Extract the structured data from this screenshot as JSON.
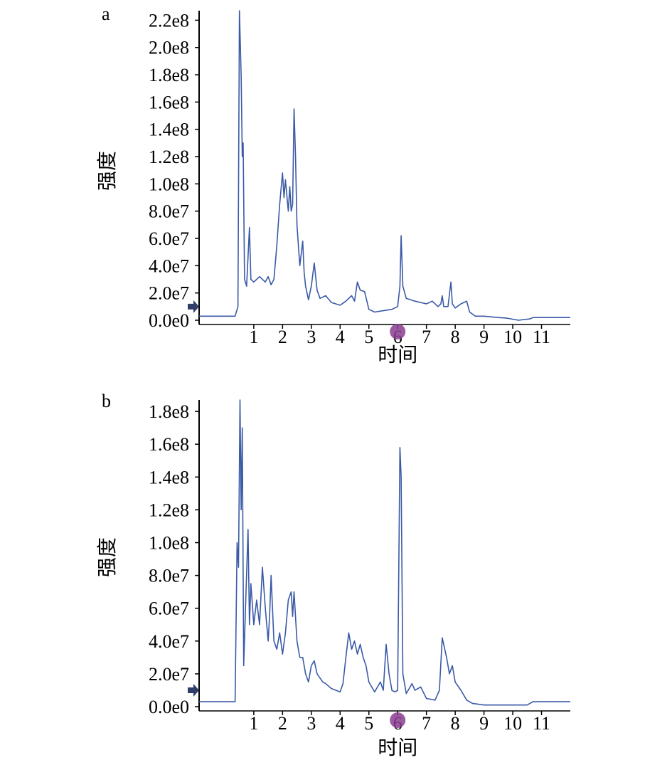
{
  "colors": {
    "trace": "#3a5aa6",
    "axis": "#000000",
    "marker": "#8a3d8f",
    "arrow": "#2f3f6a"
  },
  "chart_data": [
    {
      "panel_label": "a",
      "type": "line",
      "xlabel": "时间",
      "ylabel": "强度",
      "xlim": [
        -0.9,
        12.0
      ],
      "ylim": [
        0,
        227000000.0
      ],
      "x_ticks": [
        1,
        2,
        3,
        4,
        5,
        6,
        7,
        8,
        9,
        10,
        11
      ],
      "x_tick_labels": [
        "1",
        "2",
        "3",
        "4",
        "5",
        "6",
        "7",
        "8",
        "9",
        "10",
        "11"
      ],
      "y_ticks": [
        0,
        20000000.0,
        40000000.0,
        60000000.0,
        80000000.0,
        100000000.0,
        120000000.0,
        140000000.0,
        160000000.0,
        180000000.0,
        200000000.0,
        220000000.0
      ],
      "y_tick_labels": [
        "0.0e0",
        "2.0e7",
        "4.0e7",
        "6.0e7",
        "8.0e7",
        "1.0e8",
        "1.2e8",
        "1.4e8",
        "1.6e8",
        "1.8e8",
        "2.0e8",
        "2.2e8"
      ],
      "marker_x": 6.0,
      "series": [
        {
          "points": [
            [
              -0.9,
              3000000.0
            ],
            [
              0.35,
              3000000.0
            ],
            [
              0.45,
              10000000.0
            ],
            [
              0.5,
              227000000.0
            ],
            [
              0.56,
              180000000.0
            ],
            [
              0.6,
              120000000.0
            ],
            [
              0.63,
              130000000.0
            ],
            [
              0.68,
              30000000.0
            ],
            [
              0.75,
              25000000.0
            ],
            [
              0.85,
              68000000.0
            ],
            [
              0.9,
              30000000.0
            ],
            [
              1.0,
              28000000.0
            ],
            [
              1.2,
              32000000.0
            ],
            [
              1.4,
              28000000.0
            ],
            [
              1.5,
              32000000.0
            ],
            [
              1.6,
              26000000.0
            ],
            [
              1.7,
              30000000.0
            ],
            [
              1.8,
              55000000.0
            ],
            [
              1.9,
              85000000.0
            ],
            [
              2.0,
              108000000.0
            ],
            [
              2.05,
              90000000.0
            ],
            [
              2.1,
              103000000.0
            ],
            [
              2.2,
              80000000.0
            ],
            [
              2.25,
              98000000.0
            ],
            [
              2.3,
              80000000.0
            ],
            [
              2.35,
              85000000.0
            ],
            [
              2.4,
              155000000.0
            ],
            [
              2.45,
              120000000.0
            ],
            [
              2.5,
              70000000.0
            ],
            [
              2.6,
              40000000.0
            ],
            [
              2.7,
              58000000.0
            ],
            [
              2.75,
              35000000.0
            ],
            [
              2.8,
              25000000.0
            ],
            [
              2.9,
              15000000.0
            ],
            [
              3.0,
              25000000.0
            ],
            [
              3.1,
              42000000.0
            ],
            [
              3.2,
              22000000.0
            ],
            [
              3.3,
              16000000.0
            ],
            [
              3.5,
              18000000.0
            ],
            [
              3.7,
              13000000.0
            ],
            [
              4.0,
              11000000.0
            ],
            [
              4.2,
              14000000.0
            ],
            [
              4.4,
              18000000.0
            ],
            [
              4.5,
              14000000.0
            ],
            [
              4.6,
              28000000.0
            ],
            [
              4.7,
              22000000.0
            ],
            [
              4.85,
              21000000.0
            ],
            [
              5.0,
              8000000.0
            ],
            [
              5.2,
              6000000.0
            ],
            [
              5.5,
              7000000.0
            ],
            [
              5.8,
              8000000.0
            ],
            [
              6.0,
              10000000.0
            ],
            [
              6.08,
              25000000.0
            ],
            [
              6.12,
              62000000.0
            ],
            [
              6.18,
              25000000.0
            ],
            [
              6.3,
              16000000.0
            ],
            [
              6.6,
              14000000.0
            ],
            [
              7.0,
              12000000.0
            ],
            [
              7.2,
              14000000.0
            ],
            [
              7.4,
              10000000.0
            ],
            [
              7.5,
              12000000.0
            ],
            [
              7.55,
              18000000.0
            ],
            [
              7.6,
              10000000.0
            ],
            [
              7.75,
              10000000.0
            ],
            [
              7.85,
              28000000.0
            ],
            [
              7.9,
              12000000.0
            ],
            [
              8.0,
              9000000.0
            ],
            [
              8.2,
              12000000.0
            ],
            [
              8.4,
              14000000.0
            ],
            [
              8.5,
              6000000.0
            ],
            [
              8.7,
              3000000.0
            ],
            [
              9.0,
              3000000.0
            ],
            [
              9.5,
              2000000.0
            ],
            [
              9.8,
              1500000.0
            ],
            [
              10.2,
              0.0
            ],
            [
              10.6,
              1000000.0
            ],
            [
              10.7,
              2000000.0
            ],
            [
              11.0,
              2000000.0
            ],
            [
              12.0,
              2000000.0
            ]
          ]
        }
      ]
    },
    {
      "panel_label": "b",
      "type": "line",
      "xlabel": "时间",
      "ylabel": "强度",
      "xlim": [
        -0.9,
        12.0
      ],
      "ylim": [
        0,
        187000000.0
      ],
      "x_ticks": [
        1,
        2,
        3,
        4,
        5,
        6,
        7,
        8,
        9,
        10,
        11
      ],
      "x_tick_labels": [
        "1",
        "2",
        "3",
        "4",
        "5",
        "6",
        "7",
        "8",
        "9",
        "10",
        "11"
      ],
      "y_ticks": [
        0,
        20000000.0,
        40000000.0,
        60000000.0,
        80000000.0,
        100000000.0,
        120000000.0,
        140000000.0,
        160000000.0,
        180000000.0
      ],
      "y_tick_labels": [
        "0.0e0",
        "2.0e7",
        "4.0e7",
        "6.0e7",
        "8.0e7",
        "1.0e8",
        "1.2e8",
        "1.4e8",
        "1.6e8",
        "1.8e8"
      ],
      "marker_x": 6.0,
      "series": [
        {
          "points": [
            [
              -0.9,
              3000000.0
            ],
            [
              0.35,
              3000000.0
            ],
            [
              0.42,
              100000000.0
            ],
            [
              0.47,
              85000000.0
            ],
            [
              0.52,
              187000000.0
            ],
            [
              0.56,
              120000000.0
            ],
            [
              0.6,
              170000000.0
            ],
            [
              0.65,
              25000000.0
            ],
            [
              0.72,
              65000000.0
            ],
            [
              0.8,
              108000000.0
            ],
            [
              0.85,
              50000000.0
            ],
            [
              0.9,
              75000000.0
            ],
            [
              1.0,
              50000000.0
            ],
            [
              1.1,
              65000000.0
            ],
            [
              1.2,
              50000000.0
            ],
            [
              1.3,
              85000000.0
            ],
            [
              1.4,
              60000000.0
            ],
            [
              1.5,
              40000000.0
            ],
            [
              1.55,
              55000000.0
            ],
            [
              1.6,
              80000000.0
            ],
            [
              1.7,
              40000000.0
            ],
            [
              1.8,
              35000000.0
            ],
            [
              1.9,
              45000000.0
            ],
            [
              2.0,
              32000000.0
            ],
            [
              2.1,
              45000000.0
            ],
            [
              2.2,
              65000000.0
            ],
            [
              2.3,
              70000000.0
            ],
            [
              2.35,
              55000000.0
            ],
            [
              2.4,
              70000000.0
            ],
            [
              2.5,
              40000000.0
            ],
            [
              2.6,
              30000000.0
            ],
            [
              2.7,
              30000000.0
            ],
            [
              2.8,
              20000000.0
            ],
            [
              2.9,
              15000000.0
            ],
            [
              3.0,
              25000000.0
            ],
            [
              3.1,
              28000000.0
            ],
            [
              3.2,
              20000000.0
            ],
            [
              3.4,
              15000000.0
            ],
            [
              3.5,
              14000000.0
            ],
            [
              3.7,
              11000000.0
            ],
            [
              4.0,
              9000000.0
            ],
            [
              4.1,
              14000000.0
            ],
            [
              4.2,
              30000000.0
            ],
            [
              4.3,
              45000000.0
            ],
            [
              4.4,
              35000000.0
            ],
            [
              4.5,
              40000000.0
            ],
            [
              4.6,
              32000000.0
            ],
            [
              4.7,
              38000000.0
            ],
            [
              4.8,
              30000000.0
            ],
            [
              4.9,
              25000000.0
            ],
            [
              5.0,
              15000000.0
            ],
            [
              5.2,
              9000000.0
            ],
            [
              5.4,
              15000000.0
            ],
            [
              5.5,
              10000000.0
            ],
            [
              5.6,
              38000000.0
            ],
            [
              5.7,
              20000000.0
            ],
            [
              5.8,
              10000000.0
            ],
            [
              5.9,
              9000000.0
            ],
            [
              6.0,
              10000000.0
            ],
            [
              6.08,
              158000000.0
            ],
            [
              6.12,
              140000000.0
            ],
            [
              6.18,
              20000000.0
            ],
            [
              6.3,
              8000000.0
            ],
            [
              6.5,
              14000000.0
            ],
            [
              6.6,
              10000000.0
            ],
            [
              6.8,
              12000000.0
            ],
            [
              7.0,
              5000000.0
            ],
            [
              7.3,
              4000000.0
            ],
            [
              7.45,
              10000000.0
            ],
            [
              7.55,
              42000000.0
            ],
            [
              7.7,
              30000000.0
            ],
            [
              7.8,
              20000000.0
            ],
            [
              7.9,
              25000000.0
            ],
            [
              8.0,
              15000000.0
            ],
            [
              8.2,
              10000000.0
            ],
            [
              8.4,
              4000000.0
            ],
            [
              8.6,
              2000000.0
            ],
            [
              9.0,
              1000000.0
            ],
            [
              9.5,
              1000000.0
            ],
            [
              10.0,
              1000000.0
            ],
            [
              10.5,
              1000000.0
            ],
            [
              10.7,
              3000000.0
            ],
            [
              11.0,
              3000000.0
            ],
            [
              12.0,
              3000000.0
            ]
          ]
        }
      ]
    }
  ]
}
